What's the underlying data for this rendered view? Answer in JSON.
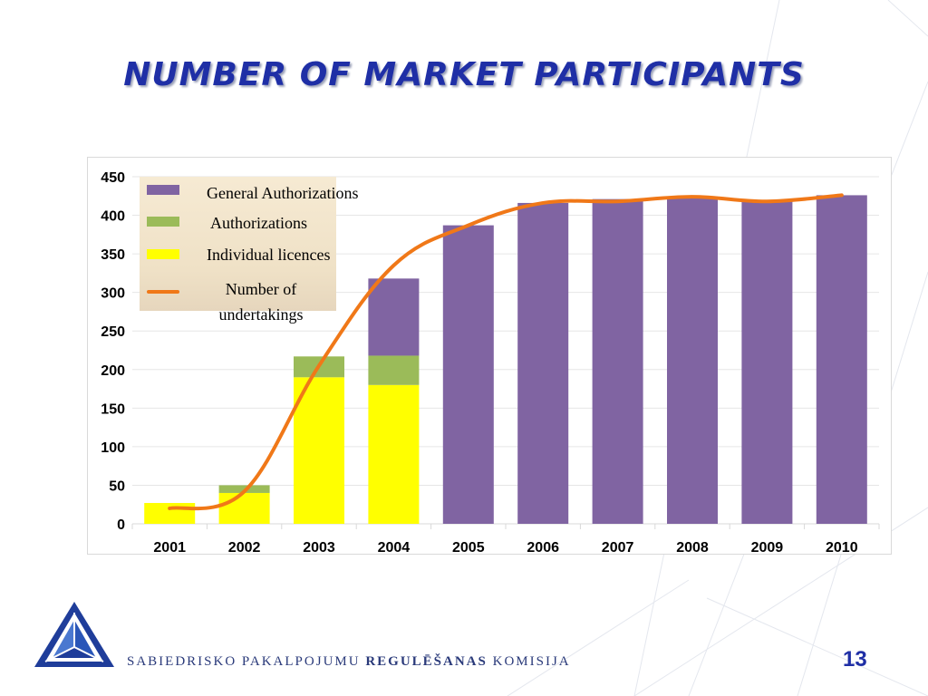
{
  "slide": {
    "title": "NUMBER OF MARKET PARTICIPANTS",
    "page_number": "13",
    "org_name_part1": "SABIEDRISKO PAKALPOJUMU ",
    "org_name_bold": "REGULĒŠANAS",
    "org_name_part2": " KOMISIJA"
  },
  "colors": {
    "title": "#1f2fa6",
    "general_authorizations": "#8064a2",
    "authorizations": "#9bbb59",
    "individual_licences": "#ffff00",
    "number_of_undertakings": "#f07818"
  },
  "chart_data": {
    "type": "bar",
    "stacked": true,
    "categories": [
      "2001",
      "2002",
      "2003",
      "2004",
      "2005",
      "2006",
      "2007",
      "2008",
      "2009",
      "2010"
    ],
    "series": [
      {
        "name": "Individual licences",
        "values": [
          27,
          40,
          190,
          180,
          0,
          0,
          0,
          0,
          0,
          0
        ]
      },
      {
        "name": "Authorizations",
        "values": [
          0,
          10,
          27,
          38,
          0,
          0,
          0,
          0,
          0,
          0
        ]
      },
      {
        "name": "General Authorizations",
        "values": [
          0,
          0,
          0,
          100,
          387,
          416,
          421,
          423,
          419,
          426
        ]
      }
    ],
    "line_series": {
      "name": "Number of undertakings",
      "values": [
        20,
        42,
        205,
        335,
        387,
        416,
        418,
        424,
        418,
        426
      ],
      "smooth": true
    },
    "legend_labels": [
      "General Authorizations",
      "Authorizations",
      "Individual licences",
      "Number of",
      "undertakings"
    ],
    "y_ticks": [
      "0",
      "50",
      "100",
      "150",
      "200",
      "250",
      "300",
      "350",
      "400",
      "450"
    ],
    "ylim": [
      0,
      450
    ],
    "grid": true,
    "legend_position": "top-left"
  }
}
